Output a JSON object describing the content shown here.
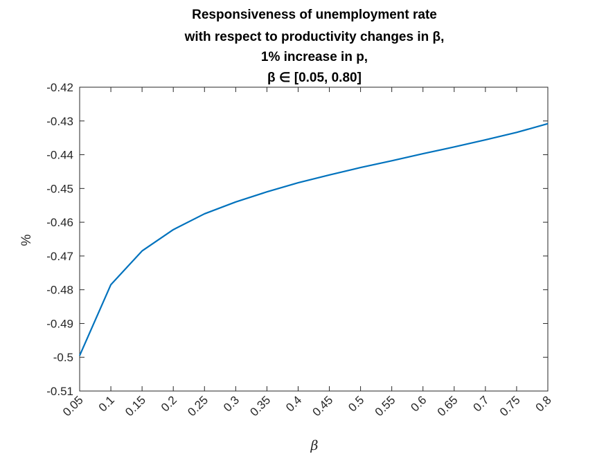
{
  "chart_data": {
    "type": "line",
    "title": [
      "Responsiveness of unemployment rate",
      "with respect to productivity changes in β,",
      "1% increase in p,",
      "β ∈ [0.05, 0.80]"
    ],
    "xlabel": "β",
    "ylabel": "%",
    "xlim": [
      0.05,
      0.8
    ],
    "ylim": [
      -0.51,
      -0.42
    ],
    "x_ticks": [
      0.05,
      0.1,
      0.15,
      0.2,
      0.25,
      0.3,
      0.35,
      0.4,
      0.45,
      0.5,
      0.55,
      0.6,
      0.65,
      0.7,
      0.75,
      0.8
    ],
    "x_tick_labels": [
      "0.05",
      "0.1",
      "0.15",
      "0.2",
      "0.25",
      "0.3",
      "0.35",
      "0.4",
      "0.45",
      "0.5",
      "0.55",
      "0.6",
      "0.65",
      "0.7",
      "0.75",
      "0.8"
    ],
    "y_ticks": [
      -0.42,
      -0.43,
      -0.44,
      -0.45,
      -0.46,
      -0.47,
      -0.48,
      -0.49,
      -0.5,
      -0.51
    ],
    "y_tick_labels": [
      "-0.42",
      "-0.43",
      "-0.44",
      "-0.45",
      "-0.46",
      "-0.47",
      "-0.48",
      "-0.49",
      "-0.5",
      "-0.51"
    ],
    "grid": false,
    "series": [
      {
        "color": "#0072BD",
        "x": [
          0.05,
          0.1,
          0.15,
          0.2,
          0.25,
          0.3,
          0.35,
          0.4,
          0.45,
          0.5,
          0.55,
          0.6,
          0.65,
          0.7,
          0.75,
          0.8
        ],
        "y": [
          -0.4995,
          -0.4785,
          -0.4685,
          -0.4622,
          -0.4575,
          -0.454,
          -0.451,
          -0.4483,
          -0.446,
          -0.4438,
          -0.4418,
          -0.4397,
          -0.4377,
          -0.4356,
          -0.4334,
          -0.4308
        ]
      }
    ]
  }
}
